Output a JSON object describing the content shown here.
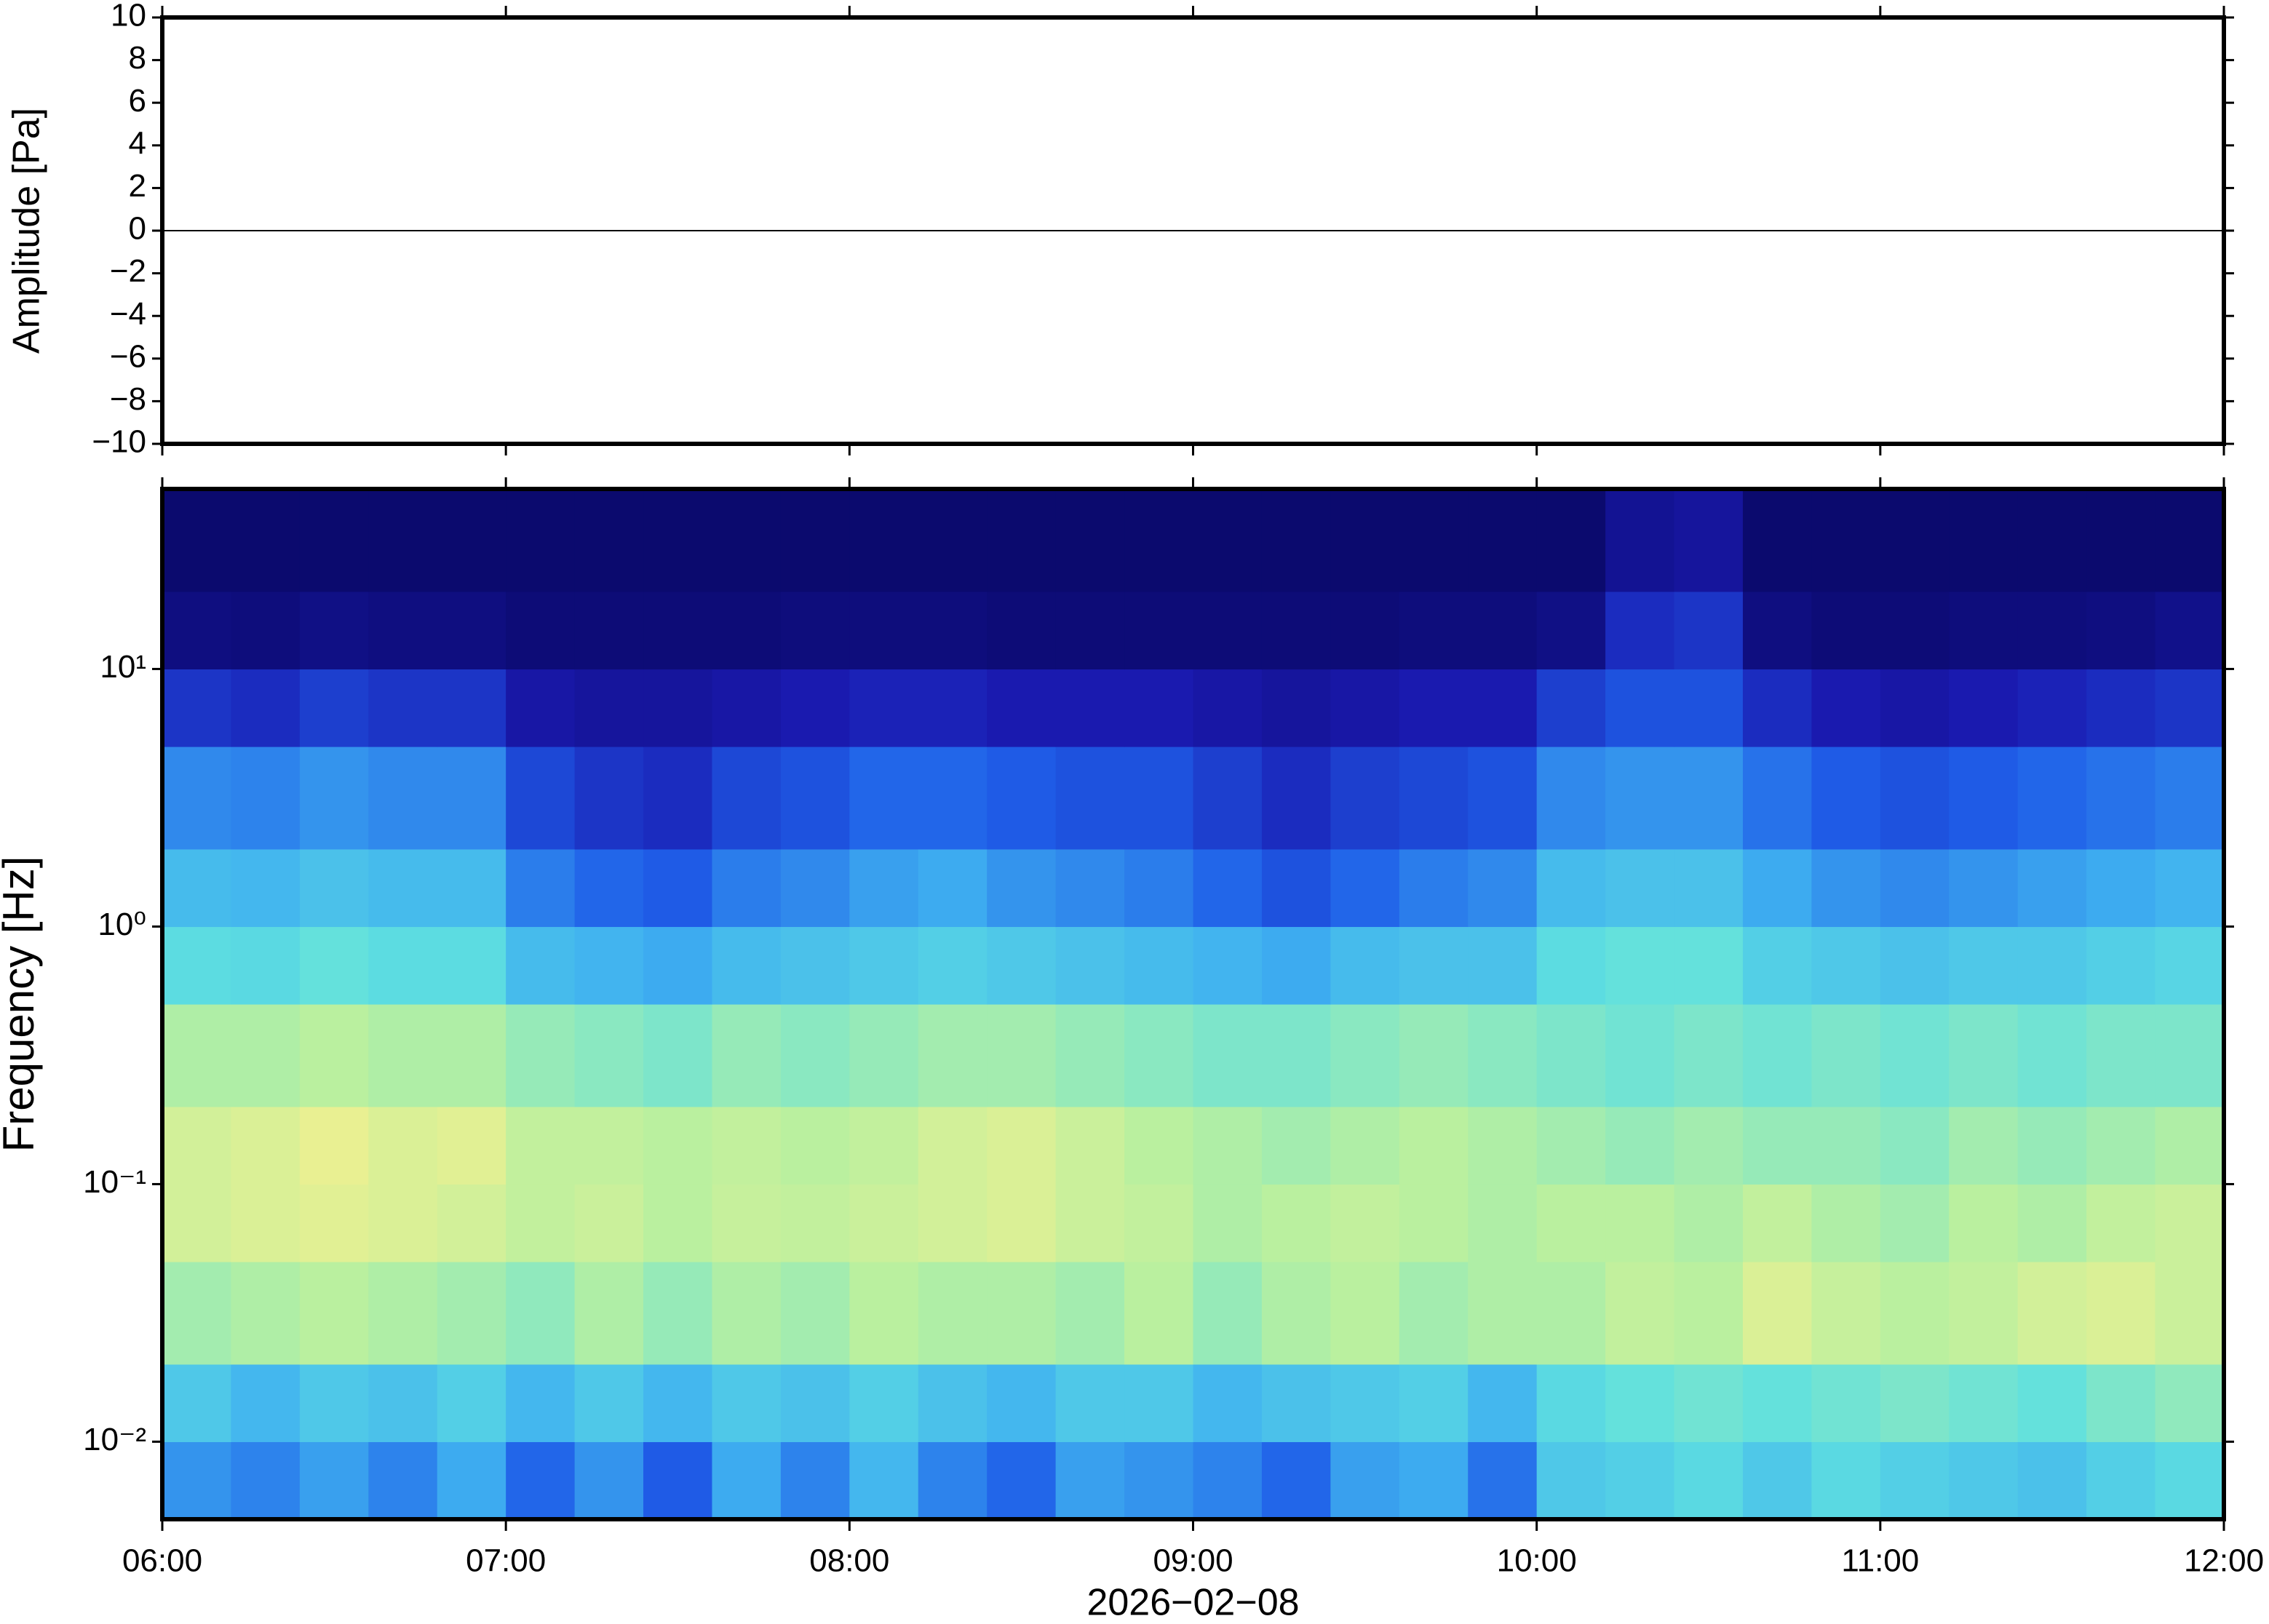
{
  "chart_data": [
    {
      "type": "line",
      "ylabel": "Amplitude [Pa]",
      "color": "#000000",
      "x": [
        6,
        6.5,
        7,
        7.5,
        8,
        8.5,
        9,
        9.5,
        10,
        10.5,
        11,
        11.5,
        12
      ],
      "values": [
        0,
        0,
        0,
        0,
        0,
        0,
        0,
        0,
        0,
        0,
        0,
        0,
        0
      ],
      "xlim": [
        6,
        12
      ],
      "xticks": [
        6,
        7,
        8,
        9,
        10,
        11,
        12
      ],
      "ylim": [
        -10,
        10
      ],
      "yticks": [
        {
          "value": -10,
          "label": "−10"
        },
        {
          "value": -8,
          "label": "−8"
        },
        {
          "value": -6,
          "label": "−6"
        },
        {
          "value": -4,
          "label": "−4"
        },
        {
          "value": -2,
          "label": "−2"
        },
        0,
        2,
        4,
        6,
        8,
        10
      ]
    },
    {
      "type": "heatmap",
      "ylabel": "Frequency [Hz]",
      "xlabel": "2026−02−08",
      "log_y": true,
      "colormap": [
        "#0b0a6e",
        "#1a1ab0",
        "#1f5ee8",
        "#3fb0f0",
        "#5fe0e0",
        "#b8f0a0",
        "#f0f090",
        "#f8e080"
      ],
      "xbins": [
        6,
        6.2,
        6.4,
        6.6,
        6.8,
        7,
        7.2,
        7.4,
        7.6,
        7.8,
        8,
        8.2,
        8.4,
        8.6,
        8.8,
        9,
        9.2,
        9.4,
        9.6,
        9.8,
        10,
        10.2,
        10.4,
        10.6,
        10.8,
        11,
        11.2,
        11.4,
        11.6,
        11.8,
        12
      ],
      "ybins": [
        0.005,
        0.01,
        0.02,
        0.05,
        0.1,
        0.2,
        0.5,
        1,
        2,
        5,
        10,
        20,
        50
      ],
      "values": [
        [
          0.38,
          0.35,
          0.4,
          0.35,
          0.42,
          0.3,
          0.38,
          0.28,
          0.42,
          0.35,
          0.45,
          0.35,
          0.3,
          0.4,
          0.38,
          0.35,
          0.3,
          0.4,
          0.42,
          0.32,
          0.5,
          0.52,
          0.55,
          0.5,
          0.55,
          0.52,
          0.5,
          0.48,
          0.52,
          0.55
        ],
        [
          0.5,
          0.45,
          0.5,
          0.48,
          0.52,
          0.45,
          0.5,
          0.45,
          0.5,
          0.48,
          0.52,
          0.48,
          0.45,
          0.5,
          0.5,
          0.45,
          0.48,
          0.5,
          0.52,
          0.45,
          0.55,
          0.58,
          0.6,
          0.58,
          0.6,
          0.62,
          0.6,
          0.58,
          0.62,
          0.65
        ],
        [
          0.68,
          0.7,
          0.72,
          0.7,
          0.68,
          0.65,
          0.7,
          0.66,
          0.7,
          0.68,
          0.72,
          0.7,
          0.7,
          0.68,
          0.72,
          0.66,
          0.7,
          0.72,
          0.68,
          0.7,
          0.7,
          0.74,
          0.72,
          0.8,
          0.75,
          0.72,
          0.74,
          0.78,
          0.8,
          0.76
        ],
        [
          0.78,
          0.8,
          0.82,
          0.8,
          0.78,
          0.74,
          0.76,
          0.72,
          0.75,
          0.74,
          0.76,
          0.78,
          0.8,
          0.76,
          0.74,
          0.7,
          0.72,
          0.74,
          0.72,
          0.7,
          0.72,
          0.72,
          0.7,
          0.74,
          0.7,
          0.68,
          0.72,
          0.7,
          0.74,
          0.76
        ],
        [
          0.78,
          0.8,
          0.84,
          0.8,
          0.82,
          0.74,
          0.74,
          0.72,
          0.74,
          0.72,
          0.74,
          0.78,
          0.8,
          0.76,
          0.72,
          0.7,
          0.68,
          0.7,
          0.72,
          0.7,
          0.68,
          0.66,
          0.68,
          0.66,
          0.66,
          0.64,
          0.68,
          0.66,
          0.68,
          0.7
        ],
        [
          0.7,
          0.7,
          0.72,
          0.7,
          0.7,
          0.66,
          0.64,
          0.62,
          0.66,
          0.64,
          0.66,
          0.68,
          0.68,
          0.66,
          0.64,
          0.62,
          0.62,
          0.64,
          0.66,
          0.64,
          0.62,
          0.6,
          0.62,
          0.6,
          0.62,
          0.6,
          0.62,
          0.6,
          0.62,
          0.62
        ],
        [
          0.56,
          0.55,
          0.58,
          0.56,
          0.56,
          0.46,
          0.44,
          0.42,
          0.46,
          0.48,
          0.5,
          0.52,
          0.5,
          0.48,
          0.46,
          0.44,
          0.42,
          0.46,
          0.48,
          0.48,
          0.56,
          0.58,
          0.58,
          0.52,
          0.5,
          0.48,
          0.5,
          0.5,
          0.52,
          0.54
        ],
        [
          0.46,
          0.45,
          0.48,
          0.46,
          0.46,
          0.34,
          0.3,
          0.28,
          0.34,
          0.36,
          0.4,
          0.42,
          0.38,
          0.36,
          0.34,
          0.3,
          0.26,
          0.3,
          0.34,
          0.36,
          0.46,
          0.48,
          0.48,
          0.42,
          0.38,
          0.36,
          0.38,
          0.4,
          0.42,
          0.44
        ],
        [
          0.36,
          0.35,
          0.38,
          0.36,
          0.36,
          0.24,
          0.2,
          0.18,
          0.24,
          0.26,
          0.3,
          0.3,
          0.28,
          0.26,
          0.26,
          0.22,
          0.18,
          0.22,
          0.24,
          0.26,
          0.36,
          0.38,
          0.38,
          0.32,
          0.28,
          0.26,
          0.28,
          0.3,
          0.32,
          0.34
        ],
        [
          0.2,
          0.18,
          0.22,
          0.2,
          0.2,
          0.12,
          0.1,
          0.1,
          0.12,
          0.14,
          0.16,
          0.16,
          0.14,
          0.14,
          0.14,
          0.12,
          0.1,
          0.12,
          0.14,
          0.14,
          0.22,
          0.26,
          0.26,
          0.18,
          0.14,
          0.12,
          0.14,
          0.16,
          0.18,
          0.2
        ],
        [
          0.04,
          0.03,
          0.05,
          0.04,
          0.04,
          0.02,
          0.02,
          0.02,
          0.02,
          0.03,
          0.03,
          0.03,
          0.02,
          0.02,
          0.02,
          0.02,
          0.02,
          0.02,
          0.03,
          0.03,
          0.05,
          0.18,
          0.2,
          0.04,
          0.02,
          0.02,
          0.03,
          0.03,
          0.04,
          0.06
        ],
        [
          0,
          0,
          0,
          0,
          0,
          0,
          0,
          0,
          0,
          0,
          0,
          0,
          0,
          0,
          0,
          0,
          0,
          0,
          0,
          0,
          0,
          0.08,
          0.1,
          0,
          0,
          0,
          0,
          0,
          0,
          0
        ]
      ],
      "xlim": [
        6,
        12
      ],
      "xticks": [
        {
          "value": 6,
          "label": "06:00"
        },
        {
          "value": 7,
          "label": "07:00"
        },
        {
          "value": 8,
          "label": "08:00"
        },
        {
          "value": 9,
          "label": "09:00"
        },
        {
          "value": 10,
          "label": "10:00"
        },
        {
          "value": 11,
          "label": "11:00"
        },
        {
          "value": 12,
          "label": "12:00"
        }
      ],
      "ylim": [
        0.005,
        50
      ],
      "yticks": [
        {
          "value": 0.01,
          "label": "10⁻²"
        },
        {
          "value": 0.1,
          "label": "10⁻¹"
        },
        {
          "value": 1,
          "label": "10⁰"
        },
        {
          "value": 10,
          "label": "10¹"
        }
      ]
    }
  ]
}
